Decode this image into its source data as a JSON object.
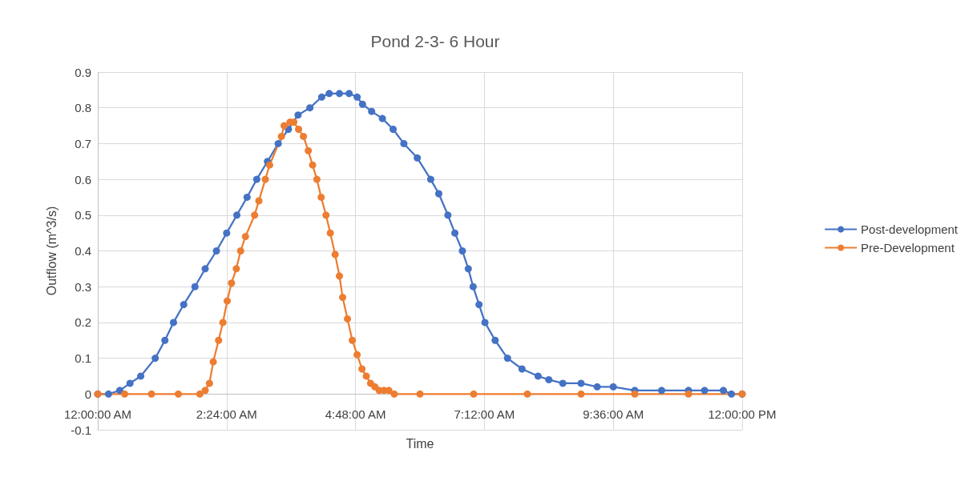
{
  "chart_data": {
    "type": "line",
    "title": "Pond 2-3- 6 Hour",
    "xlabel": "Time",
    "ylabel": "Outflow (m^3/s)",
    "xlim": [
      0,
      12
    ],
    "xticks": [
      {
        "value": 0,
        "label": "12:00:00 AM"
      },
      {
        "value": 2.4,
        "label": "2:24:00 AM"
      },
      {
        "value": 4.8,
        "label": "4:48:00 AM"
      },
      {
        "value": 7.2,
        "label": "7:12:00 AM"
      },
      {
        "value": 9.6,
        "label": "9:36:00 AM"
      },
      {
        "value": 12,
        "label": "12:00:00 PM"
      }
    ],
    "ylim": [
      -0.1,
      0.9
    ],
    "yticks": [
      -0.1,
      0,
      0.1,
      0.2,
      0.3,
      0.4,
      0.5,
      0.6,
      0.7,
      0.8,
      0.9
    ],
    "grid": true,
    "legend": "right",
    "marker": "circle",
    "line_style": "solid",
    "series": [
      {
        "name": "Post-development",
        "color": "#4472c4",
        "x": [
          0,
          0.2,
          0.41,
          0.6,
          0.8,
          1.07,
          1.25,
          1.41,
          1.6,
          1.81,
          2.0,
          2.21,
          2.4,
          2.59,
          2.78,
          2.96,
          3.16,
          3.36,
          3.55,
          3.73,
          3.95,
          4.17,
          4.31,
          4.5,
          4.68,
          4.83,
          4.93,
          5.1,
          5.3,
          5.5,
          5.7,
          5.95,
          6.2,
          6.35,
          6.52,
          6.65,
          6.79,
          6.9,
          6.99,
          7.1,
          7.21,
          7.4,
          7.63,
          7.9,
          8.2,
          8.4,
          8.66,
          9.0,
          9.3,
          9.6,
          10.0,
          10.5,
          11.0,
          11.3,
          11.65,
          11.8,
          12.0
        ],
        "values": [
          0,
          0,
          0.01,
          0.03,
          0.05,
          0.1,
          0.15,
          0.2,
          0.25,
          0.3,
          0.35,
          0.4,
          0.45,
          0.5,
          0.55,
          0.6,
          0.65,
          0.7,
          0.74,
          0.78,
          0.8,
          0.83,
          0.84,
          0.84,
          0.84,
          0.83,
          0.81,
          0.79,
          0.77,
          0.74,
          0.7,
          0.66,
          0.6,
          0.56,
          0.5,
          0.45,
          0.4,
          0.35,
          0.3,
          0.25,
          0.2,
          0.15,
          0.1,
          0.07,
          0.05,
          0.04,
          0.03,
          0.03,
          0.02,
          0.02,
          0.01,
          0.01,
          0.01,
          0.01,
          0.01,
          0,
          0
        ]
      },
      {
        "name": "Pre-Development",
        "color": "#ed7d31",
        "x": [
          0,
          0.5,
          1.0,
          1.5,
          1.9,
          2.0,
          2.08,
          2.15,
          2.25,
          2.33,
          2.41,
          2.49,
          2.58,
          2.66,
          2.75,
          2.92,
          3.0,
          3.12,
          3.2,
          3.42,
          3.47,
          3.58,
          3.65,
          3.74,
          3.83,
          3.92,
          4.0,
          4.08,
          4.16,
          4.25,
          4.33,
          4.42,
          4.5,
          4.56,
          4.65,
          4.74,
          4.83,
          4.92,
          5.0,
          5.08,
          5.16,
          5.24,
          5.33,
          5.42,
          5.52,
          6.0,
          7.0,
          8.0,
          9.0,
          10.0,
          11.0,
          12.0
        ],
        "values": [
          0,
          0,
          0,
          0,
          0,
          0.01,
          0.03,
          0.09,
          0.15,
          0.2,
          0.26,
          0.31,
          0.35,
          0.4,
          0.44,
          0.5,
          0.54,
          0.6,
          0.64,
          0.72,
          0.75,
          0.76,
          0.76,
          0.74,
          0.72,
          0.68,
          0.64,
          0.6,
          0.55,
          0.5,
          0.45,
          0.39,
          0.33,
          0.27,
          0.21,
          0.15,
          0.11,
          0.07,
          0.05,
          0.03,
          0.02,
          0.01,
          0.01,
          0.01,
          0,
          0,
          0,
          0,
          0,
          0,
          0,
          0
        ]
      }
    ]
  }
}
